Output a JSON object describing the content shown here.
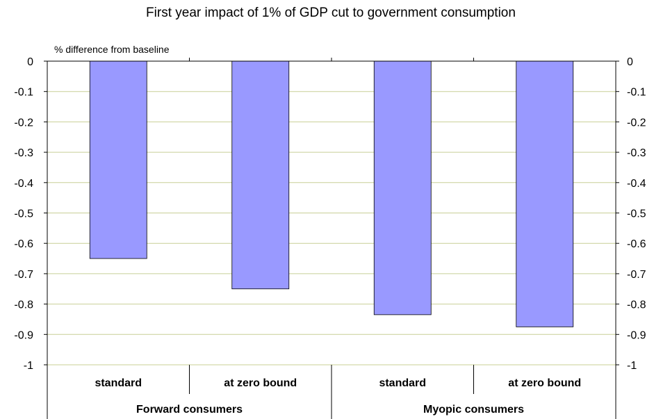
{
  "chart_data": {
    "type": "bar",
    "title": "First year impact of 1% of GDP cut to government consumption",
    "ylabel": "% difference from baseline",
    "xlabel": "",
    "ylim": [
      -1,
      0
    ],
    "yticks": [
      "0",
      "-0.1",
      "-0.2",
      "-0.3",
      "-0.4",
      "-0.5",
      "-0.6",
      "-0.7",
      "-0.8",
      "-0.9",
      "-1"
    ],
    "ytick_values": [
      0,
      -0.1,
      -0.2,
      -0.3,
      -0.4,
      -0.5,
      -0.6,
      -0.7,
      -0.8,
      -0.9,
      -1
    ],
    "categories": [
      "standard",
      "at zero bound",
      "standard",
      "at zero bound"
    ],
    "groups": [
      "Forward consumers",
      "Myopic consumers"
    ],
    "values": [
      -0.65,
      -0.75,
      -0.835,
      -0.875
    ],
    "grid": true,
    "legend": "none",
    "colors": {
      "bar": "#9999ff",
      "grid": "#c8cf96",
      "axis": "#000000"
    }
  }
}
